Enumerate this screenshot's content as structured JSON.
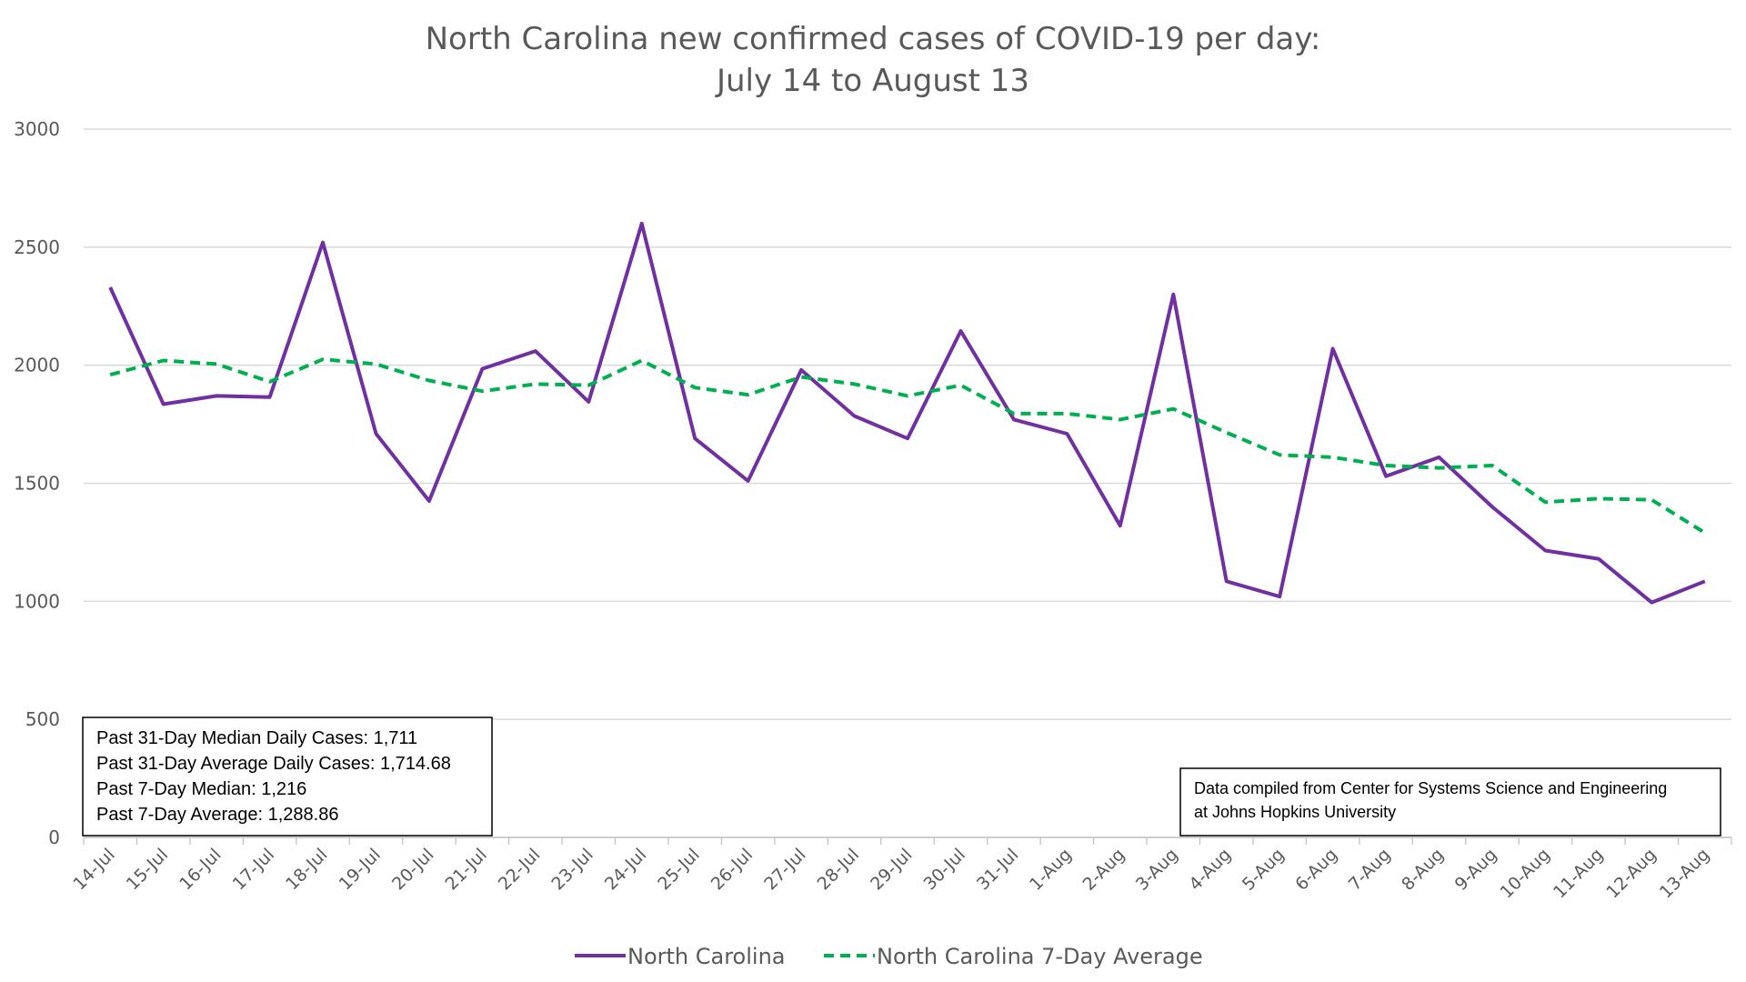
{
  "chart_data": {
    "type": "line",
    "title": "North Carolina new confirmed cases of COVID-19 per day:",
    "subtitle": "July 14 to August 13",
    "xlabel": "",
    "ylabel": "",
    "ylim": [
      0,
      3000
    ],
    "yticks": [
      "0",
      "500",
      "1000",
      "1500",
      "2000",
      "2500",
      "3000"
    ],
    "grid": true,
    "legend_position": "bottom",
    "categories": [
      "14-Jul",
      "15-Jul",
      "16-Jul",
      "17-Jul",
      "18-Jul",
      "19-Jul",
      "20-Jul",
      "21-Jul",
      "22-Jul",
      "23-Jul",
      "24-Jul",
      "25-Jul",
      "26-Jul",
      "27-Jul",
      "28-Jul",
      "29-Jul",
      "30-Jul",
      "31-Jul",
      "1-Aug",
      "2-Aug",
      "3-Aug",
      "4-Aug",
      "5-Aug",
      "6-Aug",
      "7-Aug",
      "8-Aug",
      "9-Aug",
      "10-Aug",
      "11-Aug",
      "12-Aug",
      "13-Aug"
    ],
    "series": [
      {
        "name": "North Carolina",
        "color": "#7030a0",
        "style": "solid",
        "values": [
          2330,
          1835,
          1870,
          1865,
          2520,
          1710,
          1425,
          1985,
          2060,
          1845,
          2600,
          1690,
          1510,
          1980,
          1785,
          1690,
          2145,
          1770,
          1710,
          1320,
          2300,
          1085,
          1020,
          2070,
          1530,
          1610,
          1400,
          1215,
          1180,
          995,
          1085
        ]
      },
      {
        "name": "North Carolina 7-Day Average",
        "color": "#00b050",
        "style": "dashed",
        "values": [
          1960,
          2020,
          2005,
          1930,
          2025,
          2005,
          1935,
          1890,
          1920,
          1915,
          2020,
          1905,
          1875,
          1950,
          1920,
          1870,
          1915,
          1795,
          1795,
          1770,
          1815,
          1715,
          1620,
          1610,
          1575,
          1565,
          1575,
          1420,
          1435,
          1430,
          1290
        ]
      }
    ],
    "stats_box": [
      "Past 31-Day Median Daily Cases: 1,711",
      "Past 31-Day Average Daily Cases: 1,714.68",
      "Past 7-Day Median: 1,216",
      "Past 7-Day Average: 1,288.86"
    ],
    "source_note": [
      "Data compiled from Center for Systems Science and Engineering",
      "at Johns Hopkins University"
    ]
  }
}
